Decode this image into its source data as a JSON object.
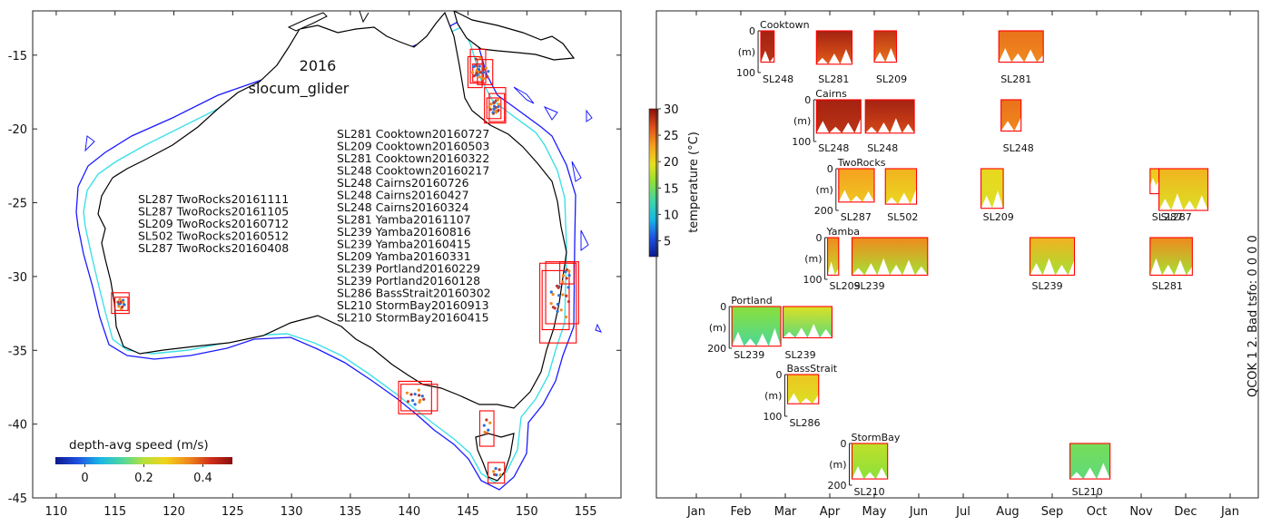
{
  "chart_data": [
    {
      "type": "map",
      "title": "2016",
      "subtitle": "slocum_glider",
      "xlim": [
        108,
        158
      ],
      "ylim": [
        -45,
        -12
      ],
      "x_ticks": [
        110,
        115,
        120,
        125,
        130,
        135,
        140,
        145,
        150,
        155
      ],
      "y_ticks": [
        -15,
        -20,
        -25,
        -30,
        -35,
        -40,
        -45
      ],
      "colorbar": {
        "label": "depth-avg speed (m/s)",
        "range": [
          -0.1,
          0.5
        ],
        "ticks": [
          0,
          0.2,
          0.4
        ],
        "stops": [
          "#0b1a8c",
          "#1f4fe0",
          "#18b6e6",
          "#4dd6a0",
          "#b8e03a",
          "#f2d21a",
          "#f08a1c",
          "#d0301a",
          "#8a0f0f"
        ]
      },
      "colors": {
        "coastline": "#000000",
        "isobath_shelf": "#3de0e8",
        "isobath_deep": "#1a1aff",
        "deployment_box": "#ff0000",
        "track": "#c0392b"
      },
      "deployment_boxes": [
        {
          "x": [
            145.2,
            146.5
          ],
          "y": [
            -16.9,
            -14.6
          ]
        },
        {
          "x": [
            145.0,
            146.2
          ],
          "y": [
            -17.2,
            -15.1
          ]
        },
        {
          "x": [
            145.4,
            146.3
          ],
          "y": [
            -16.8,
            -15.6
          ]
        },
        {
          "x": [
            145.8,
            147.1
          ],
          "y": [
            -17.0,
            -15.3
          ]
        },
        {
          "x": [
            146.4,
            148.2
          ],
          "y": [
            -19.6,
            -17.2
          ]
        },
        {
          "x": [
            146.6,
            147.8
          ],
          "y": [
            -19.3,
            -17.9
          ]
        },
        {
          "x": [
            146.8,
            148.1
          ],
          "y": [
            -19.5,
            -17.6
          ]
        },
        {
          "x": [
            151.3,
            153.6
          ],
          "y": [
            -33.6,
            -29.6
          ]
        },
        {
          "x": [
            151.1,
            154.2
          ],
          "y": [
            -34.5,
            -29.1
          ]
        },
        {
          "x": [
            151.6,
            154.4
          ],
          "y": [
            -33.2,
            -29.0
          ]
        },
        {
          "x": [
            152.8,
            154.0
          ],
          "y": [
            -30.5,
            -29.0
          ]
        },
        {
          "x": [
            139.1,
            141.9
          ],
          "y": [
            -39.3,
            -37.1
          ]
        },
        {
          "x": [
            139.3,
            142.4
          ],
          "y": [
            -39.1,
            -37.3
          ]
        },
        {
          "x": [
            146.0,
            147.2
          ],
          "y": [
            -41.5,
            -39.1
          ]
        },
        {
          "x": [
            146.7,
            148.1
          ],
          "y": [
            -44.0,
            -42.6
          ]
        },
        {
          "x": [
            114.7,
            116.2
          ],
          "y": [
            -32.5,
            -31.1
          ]
        },
        {
          "x": [
            115.0,
            116.1
          ],
          "y": [
            -32.3,
            -31.4
          ]
        }
      ],
      "deployments_east": [
        "SL281 Cooktown20160727",
        "SL209 Cooktown20160503",
        "SL281 Cooktown20160322",
        "SL248 Cooktown20160217",
        "SL248 Cairns20160726",
        "SL248 Cairns20160427",
        "SL248 Cairns20160324",
        "SL281 Yamba20161107",
        "SL239 Yamba20160816",
        "SL239 Yamba20160415",
        "SL209 Yamba20160331",
        "SL239 Portland20160229",
        "SL239 Portland20160128",
        "SL286 BassStrait20160302",
        "SL210 StormBay20160913",
        "SL210 StormBay20160415"
      ],
      "deployments_west": [
        "SL287 TwoRocks20161111",
        "SL287 TwoRocks20161105",
        "SL209 TwoRocks20160712",
        "SL502 TwoRocks20160512",
        "SL287 TwoRocks20160408"
      ]
    },
    {
      "type": "timeline",
      "x_ticks": [
        "Jan",
        "Feb",
        "Mar",
        "Apr",
        "May",
        "Jun",
        "Jul",
        "Aug",
        "Sep",
        "Oct",
        "Nov",
        "Dec",
        "Jan"
      ],
      "xlim_months": [
        -0.5,
        12.2
      ],
      "colorbar": {
        "label": "temperature (°C)",
        "range": [
          2,
          30
        ],
        "ticks": [
          5,
          10,
          15,
          20,
          25,
          30
        ],
        "stops": [
          "#0b1a8c",
          "#1f4fe0",
          "#18b6e6",
          "#40d6a8",
          "#8be03a",
          "#e8e020",
          "#f6a020",
          "#e05018",
          "#8a0f0f"
        ]
      },
      "right_label": "QCOK 1  2. Bad tsfo: 0  0  0  0",
      "ylabel_unit": "(m)",
      "panels": [
        {
          "site": "Cooktown",
          "ymax": 100,
          "y_ticks": [
            0,
            100
          ],
          "segments": [
            {
              "glider": "SL248",
              "start": 1.45,
              "end": 1.75,
              "t_top": 29,
              "t_bot": 28,
              "depth": 75
            },
            {
              "glider": "SL281",
              "start": 2.7,
              "end": 3.5,
              "t_top": 29,
              "t_bot": 26,
              "depth": 80
            },
            {
              "glider": "SL209",
              "start": 4.0,
              "end": 4.5,
              "t_top": 28,
              "t_bot": 25,
              "depth": 75
            },
            {
              "glider": "SL281",
              "start": 6.8,
              "end": 7.8,
              "t_top": 25,
              "t_bot": 24,
              "depth": 75
            }
          ]
        },
        {
          "site": "Cairns",
          "ymax": 100,
          "y_ticks": [
            0,
            100
          ],
          "segments": [
            {
              "glider": "SL248",
              "start": 2.7,
              "end": 3.7,
              "t_top": 29,
              "t_bot": 28,
              "depth": 80
            },
            {
              "glider": "SL248",
              "start": 3.8,
              "end": 4.9,
              "t_top": 29,
              "t_bot": 27,
              "depth": 80
            },
            {
              "glider": "SL248",
              "start": 6.85,
              "end": 7.3,
              "t_top": 25,
              "t_bot": 24,
              "depth": 75
            }
          ]
        },
        {
          "site": "TwoRocks",
          "ymax": 200,
          "y_ticks": [
            0,
            200
          ],
          "segments": [
            {
              "glider": "SL287",
              "start": 3.2,
              "end": 4.0,
              "t_top": 23,
              "t_bot": 21,
              "depth": 160
            },
            {
              "glider": "SL502",
              "start": 4.25,
              "end": 4.95,
              "t_top": 22,
              "t_bot": 20,
              "depth": 170
            },
            {
              "glider": "SL209",
              "start": 6.4,
              "end": 6.9,
              "t_top": 20,
              "t_bot": 19,
              "depth": 190
            },
            {
              "glider": "SL287",
              "start": 10.2,
              "end": 10.4,
              "t_top": 21,
              "t_bot": 20,
              "depth": 80
            },
            {
              "glider": "SL287",
              "start": 10.4,
              "end": 11.5,
              "t_top": 22,
              "t_bot": 19,
              "depth": 200
            }
          ]
        },
        {
          "site": "Yamba",
          "ymax": 100,
          "y_ticks": [
            0,
            100
          ],
          "segments": [
            {
              "glider": "SL209",
              "start": 2.95,
              "end": 3.2,
              "t_top": 24,
              "t_bot": 18,
              "depth": 90
            },
            {
              "glider": "SL239",
              "start": 3.5,
              "end": 5.2,
              "t_top": 24,
              "t_bot": 17,
              "depth": 90
            },
            {
              "glider": "SL239",
              "start": 7.5,
              "end": 8.5,
              "t_top": 22,
              "t_bot": 17,
              "depth": 90
            },
            {
              "glider": "SL281",
              "start": 10.2,
              "end": 11.15,
              "t_top": 24,
              "t_bot": 17,
              "depth": 90
            }
          ]
        },
        {
          "site": "Portland",
          "ymax": 200,
          "y_ticks": [
            0,
            200
          ],
          "segments": [
            {
              "glider": "SL239",
              "start": 0.8,
              "end": 1.9,
              "t_top": 16,
              "t_bot": 13,
              "depth": 190
            },
            {
              "glider": "SL239",
              "start": 1.95,
              "end": 3.05,
              "t_top": 19,
              "t_bot": 14,
              "depth": 150
            }
          ]
        },
        {
          "site": "BassStrait",
          "ymax": 100,
          "y_ticks": [
            0,
            100
          ],
          "segments": [
            {
              "glider": "SL286",
              "start": 2.05,
              "end": 2.75,
              "t_top": 21,
              "t_bot": 19,
              "depth": 70
            }
          ]
        },
        {
          "site": "StormBay",
          "ymax": 200,
          "y_ticks": [
            0,
            200
          ],
          "segments": [
            {
              "glider": "SL210",
              "start": 3.5,
              "end": 4.3,
              "t_top": 18,
              "t_bot": 16,
              "depth": 170
            },
            {
              "glider": "SL210",
              "start": 8.4,
              "end": 9.3,
              "t_top": 15,
              "t_bot": 14,
              "depth": 170
            }
          ]
        }
      ]
    }
  ]
}
